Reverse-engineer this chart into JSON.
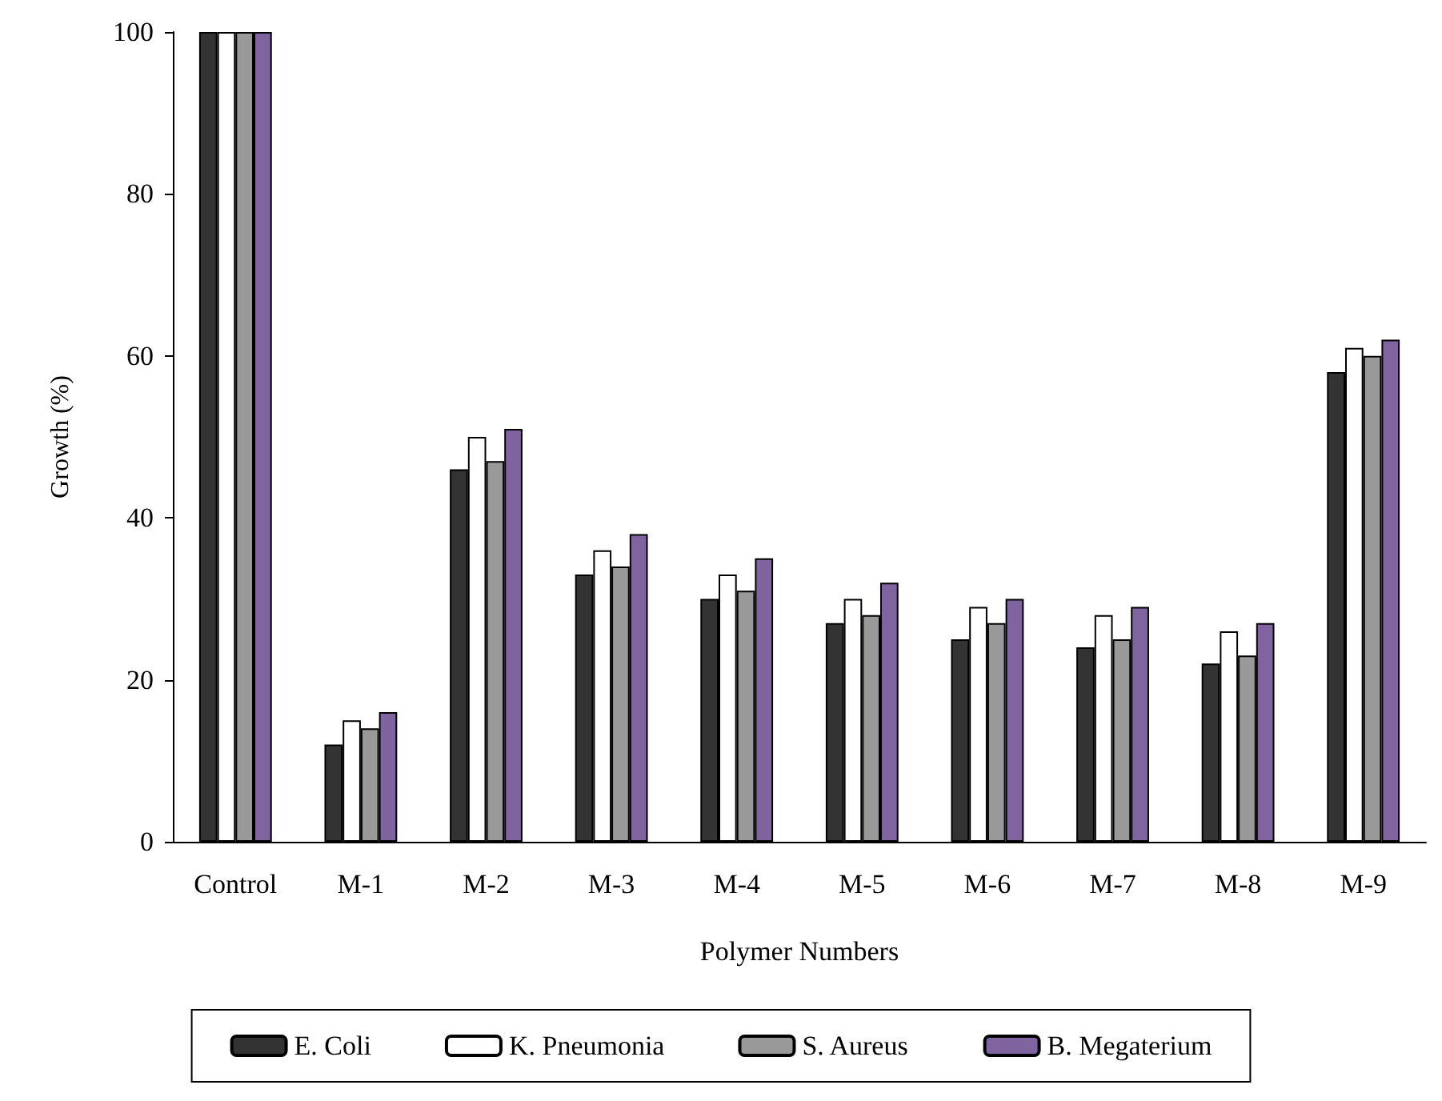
{
  "chart_data": {
    "type": "bar",
    "xlabel": "Polymer Numbers",
    "ylabel": "Growth (%)",
    "categories": [
      "Control",
      "M-1",
      "M-2",
      "M-3",
      "M-4",
      "M-5",
      "M-6",
      "M-7",
      "M-8",
      "M-9"
    ],
    "series": [
      {
        "name": "E. Coli",
        "color": "#333333",
        "values": [
          100,
          12,
          46,
          33,
          30,
          27,
          25,
          24,
          22,
          58
        ]
      },
      {
        "name": "K. Pneumonia",
        "color": "#ffffff",
        "values": [
          100,
          15,
          50,
          36,
          33,
          30,
          29,
          28,
          26,
          61
        ]
      },
      {
        "name": "S. Aureus",
        "color": "#999999",
        "values": [
          100,
          14,
          47,
          34,
          31,
          28,
          27,
          25,
          23,
          60
        ]
      },
      {
        "name": "B. Megaterium",
        "color": "#7f64a0",
        "values": [
          100,
          16,
          51,
          38,
          35,
          32,
          30,
          29,
          27,
          62
        ]
      }
    ],
    "ylim": [
      0,
      100
    ],
    "yticks": [
      0,
      20,
      40,
      60,
      80,
      100
    ],
    "grid": false,
    "legend": "bottom"
  }
}
